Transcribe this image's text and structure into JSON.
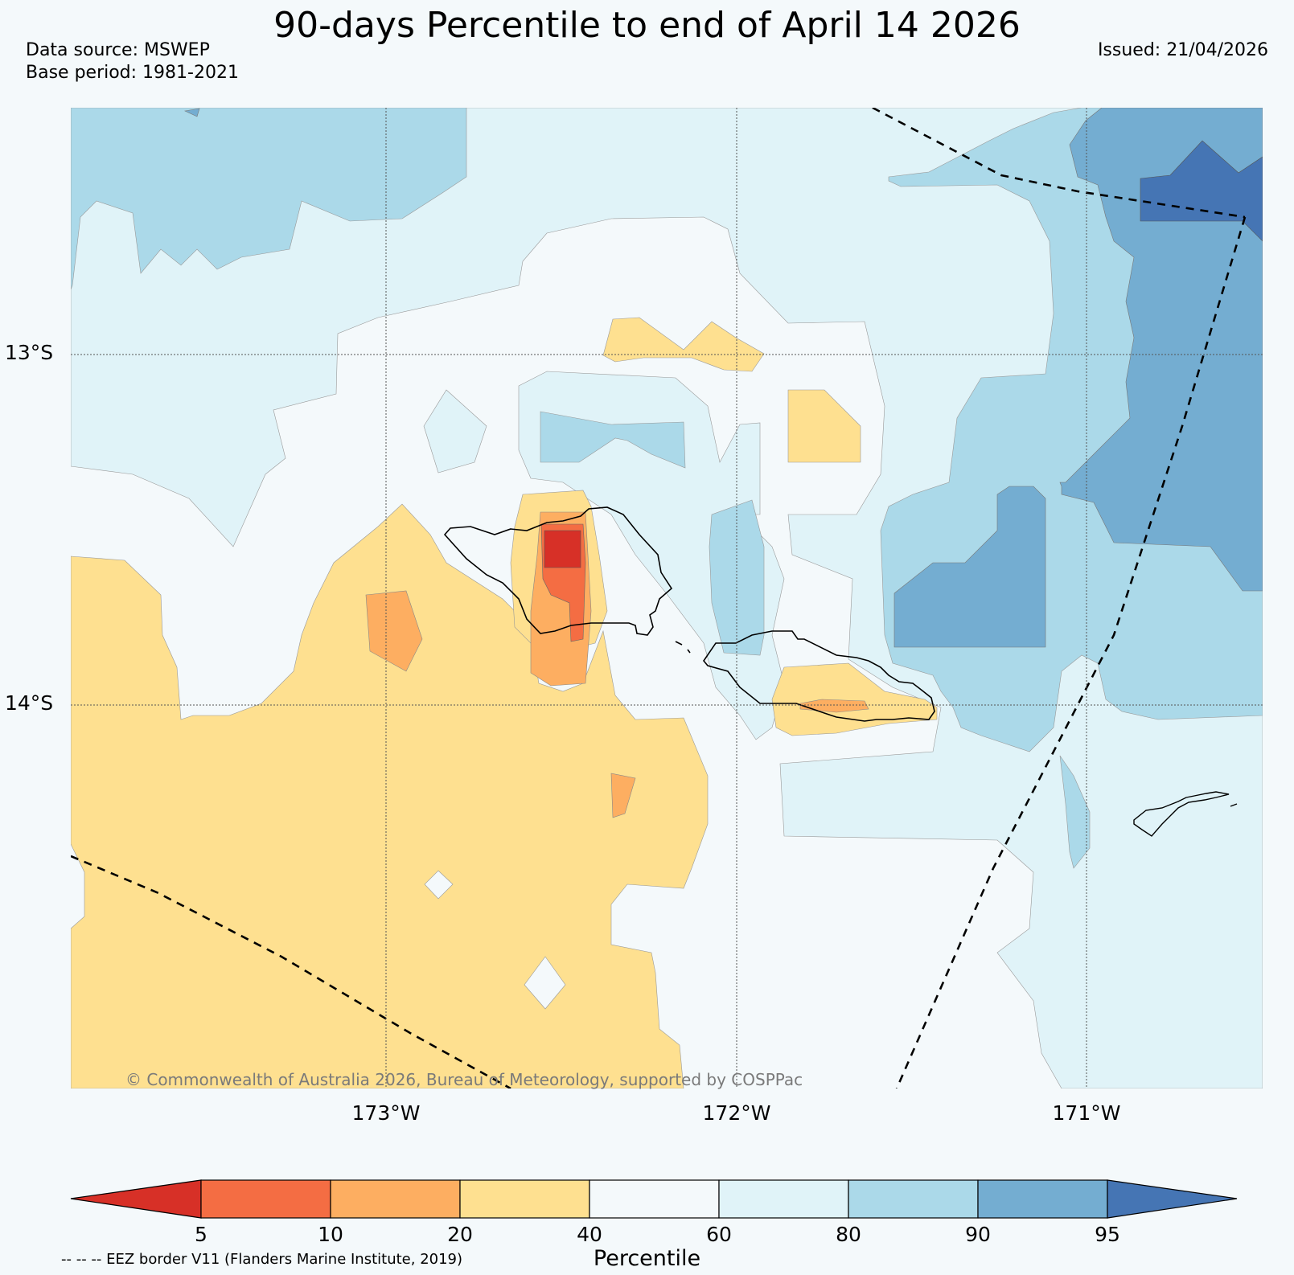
{
  "title": "90-days Percentile to end of April 14 2026",
  "data_source": "Data source: MSWEP",
  "base_period": "Base period: 1981-2021",
  "issued": "Issued: 21/04/2026",
  "lat_labels": [
    "13°S",
    "14°S"
  ],
  "lon_labels": [
    "173°W",
    "172°W",
    "171°W"
  ],
  "copyright": "© Commonwealth of Australia 2026, Bureau of Meteorology, supported by COSPPac",
  "colorbar": {
    "label": "Percentile",
    "ticks": [
      "5",
      "10",
      "20",
      "40",
      "60",
      "80",
      "90",
      "95"
    ],
    "colors": {
      "below_5": "#d73027",
      "5_10": "#f46d43",
      "10_20": "#fdae61",
      "20_40": "#fee090",
      "40_60": "#f4f9fb",
      "60_80": "#e0f3f8",
      "80_90": "#abd9e9",
      "90_95": "#74add1",
      "above_95": "#4575b4"
    }
  },
  "legend_note": "-- -- -- EEZ border V11 (Flanders Marine Institute, 2019)"
}
